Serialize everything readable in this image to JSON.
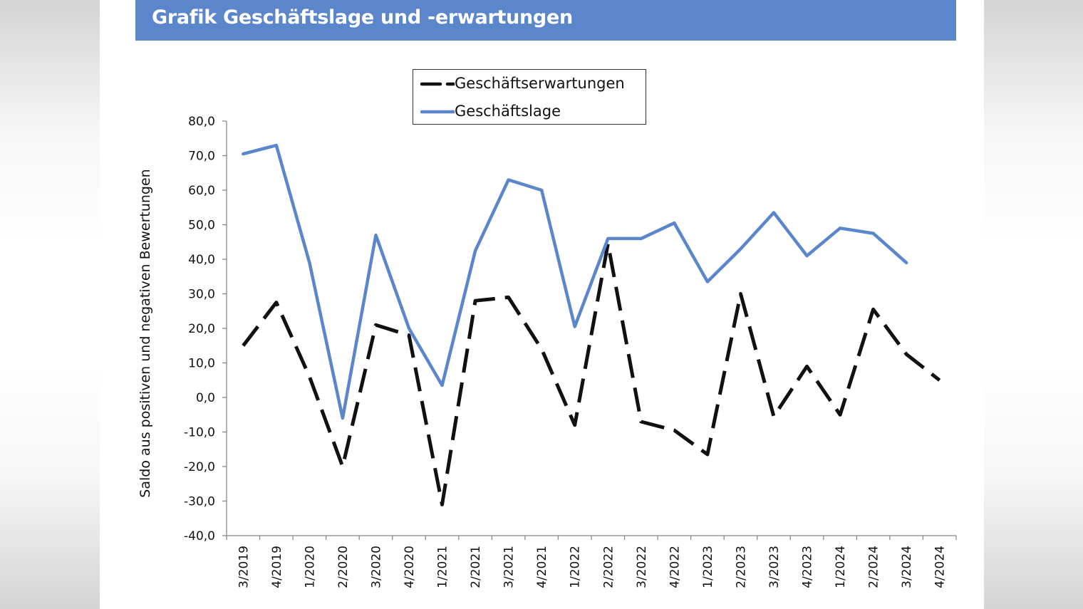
{
  "title": "Grafik Geschäftslage und -erwartungen",
  "colors": {
    "title_bar": "#5b86cc",
    "lage": "#5b86cc",
    "erwartungen": "#111111"
  },
  "chart_data": {
    "type": "line",
    "title": "Grafik Geschäftslage und -erwartungen",
    "xlabel": "",
    "ylabel": "Saldo aus positiven und negativen Bewertungen",
    "ylim": [
      -40,
      80
    ],
    "ytick_step": 10,
    "ytick_labels": [
      "-40,0",
      "-30,0",
      "-20,0",
      "-10,0",
      "0,0",
      "10,0",
      "20,0",
      "30,0",
      "40,0",
      "50,0",
      "60,0",
      "70,0",
      "80,0"
    ],
    "grid": false,
    "legend_position": "top-center",
    "categories": [
      "3/2019",
      "4/2019",
      "1/2020",
      "2/2020",
      "3/2020",
      "4/2020",
      "1/2021",
      "2/2021",
      "3/2021",
      "4/2021",
      "1/2022",
      "2/2022",
      "3/2022",
      "4/2022",
      "1/2023",
      "2/2023",
      "3/2023",
      "4/2023",
      "1/2024",
      "2/2024",
      "3/2024",
      "4/2024"
    ],
    "series": [
      {
        "name": "Geschäftserwartungen",
        "style": "dashed",
        "color": "#111111",
        "values": [
          15,
          27.5,
          6,
          -20,
          21,
          18,
          -31,
          28,
          29,
          14,
          -8,
          44.5,
          -7,
          -9.5,
          -16.5,
          30,
          -5.5,
          9,
          -5,
          25.5,
          12.5,
          5
        ]
      },
      {
        "name": "Geschäftslage",
        "style": "solid",
        "color": "#5b86cc",
        "values": [
          70.5,
          73,
          39,
          -6,
          47,
          20,
          3.5,
          42.5,
          63,
          60,
          20.5,
          46,
          46,
          50.5,
          33.5,
          43,
          53.5,
          41,
          49,
          47.5,
          39,
          null
        ]
      }
    ]
  }
}
